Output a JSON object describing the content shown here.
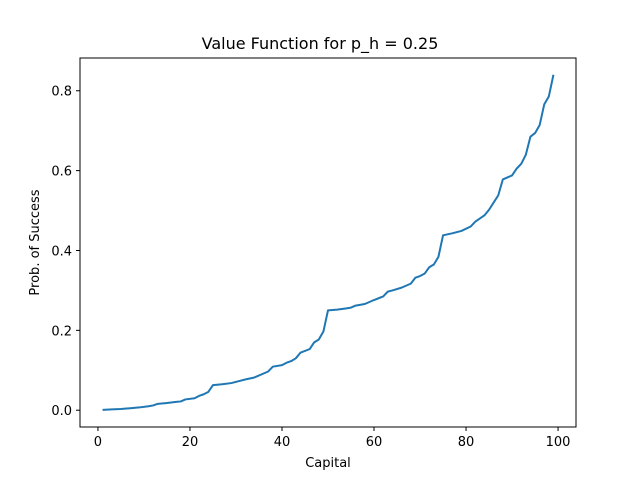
{
  "chart_data": {
    "type": "line",
    "title": "Value Function for p_h = 0.25",
    "xlabel": "Capital",
    "ylabel": "Prob. of Success",
    "xlim": [
      -3.9,
      103.9
    ],
    "ylim": [
      -0.042,
      0.882
    ],
    "xticks": [
      0,
      20,
      40,
      60,
      80,
      100
    ],
    "xtick_labels": [
      "0",
      "20",
      "40",
      "60",
      "80",
      "100"
    ],
    "yticks": [
      0.0,
      0.2,
      0.4,
      0.6,
      0.8
    ],
    "ytick_labels": [
      "0.0",
      "0.2",
      "0.4",
      "0.6",
      "0.8"
    ],
    "grid": false,
    "line_color": "#1f77b4",
    "series": [
      {
        "x": [
          1,
          3,
          5,
          7,
          9,
          11,
          12,
          13,
          15,
          17,
          18,
          19,
          21,
          22,
          23,
          24,
          25,
          27,
          29,
          31,
          32,
          34,
          36,
          37,
          38,
          40,
          41,
          42,
          43,
          44,
          46,
          47,
          48,
          49,
          50,
          52,
          54,
          55,
          56,
          58,
          60,
          62,
          63,
          64,
          66,
          68,
          69,
          70,
          71,
          72,
          73,
          74,
          75,
          77,
          79,
          81,
          82,
          84,
          85,
          86,
          87,
          88,
          90,
          91,
          92,
          93,
          94,
          95,
          96,
          97,
          98,
          99
        ],
        "y": [
          0.001,
          0.002,
          0.003,
          0.005,
          0.007,
          0.01,
          0.012,
          0.016,
          0.018,
          0.021,
          0.022,
          0.027,
          0.03,
          0.036,
          0.04,
          0.046,
          0.063,
          0.065,
          0.068,
          0.074,
          0.077,
          0.082,
          0.092,
          0.097,
          0.109,
          0.113,
          0.119,
          0.123,
          0.13,
          0.144,
          0.153,
          0.17,
          0.177,
          0.197,
          0.25,
          0.252,
          0.255,
          0.257,
          0.262,
          0.266,
          0.276,
          0.285,
          0.297,
          0.3,
          0.307,
          0.317,
          0.332,
          0.336,
          0.342,
          0.358,
          0.365,
          0.384,
          0.438,
          0.443,
          0.449,
          0.46,
          0.472,
          0.488,
          0.502,
          0.52,
          0.538,
          0.578,
          0.588,
          0.605,
          0.617,
          0.64,
          0.685,
          0.694,
          0.714,
          0.766,
          0.786,
          0.84
        ]
      }
    ]
  }
}
